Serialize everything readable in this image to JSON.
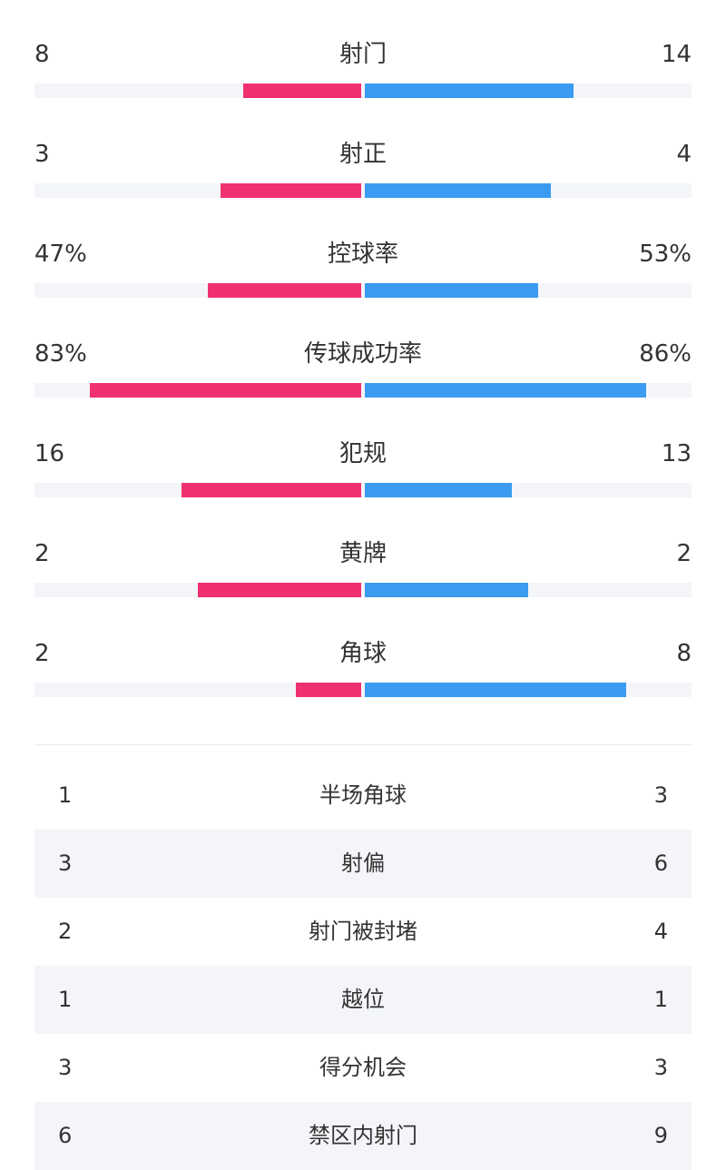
{
  "colors": {
    "home": "#f0306f",
    "away": "#3a9bf0",
    "track": "#f3f5f9"
  },
  "bar_stats": [
    {
      "label": "射门",
      "left": "8",
      "right": "14",
      "left_fill": 0.36,
      "right_fill": 0.64
    },
    {
      "label": "射正",
      "left": "3",
      "right": "4",
      "left_fill": 0.43,
      "right_fill": 0.57
    },
    {
      "label": "控球率",
      "left": "47%",
      "right": "53%",
      "left_fill": 0.47,
      "right_fill": 0.53
    },
    {
      "label": "传球成功率",
      "left": "83%",
      "right": "86%",
      "left_fill": 0.83,
      "right_fill": 0.86
    },
    {
      "label": "犯规",
      "left": "16",
      "right": "13",
      "left_fill": 0.55,
      "right_fill": 0.45
    },
    {
      "label": "黄牌",
      "left": "2",
      "right": "2",
      "left_fill": 0.5,
      "right_fill": 0.5
    },
    {
      "label": "角球",
      "left": "2",
      "right": "8",
      "left_fill": 0.2,
      "right_fill": 0.8
    }
  ],
  "table_stats": [
    {
      "label": "半场角球",
      "left": "1",
      "right": "3"
    },
    {
      "label": "射偏",
      "left": "3",
      "right": "6"
    },
    {
      "label": "射门被封堵",
      "left": "2",
      "right": "4"
    },
    {
      "label": "越位",
      "left": "1",
      "right": "1"
    },
    {
      "label": "得分机会",
      "left": "3",
      "right": "3"
    },
    {
      "label": "禁区内射门",
      "left": "6",
      "right": "9"
    }
  ]
}
